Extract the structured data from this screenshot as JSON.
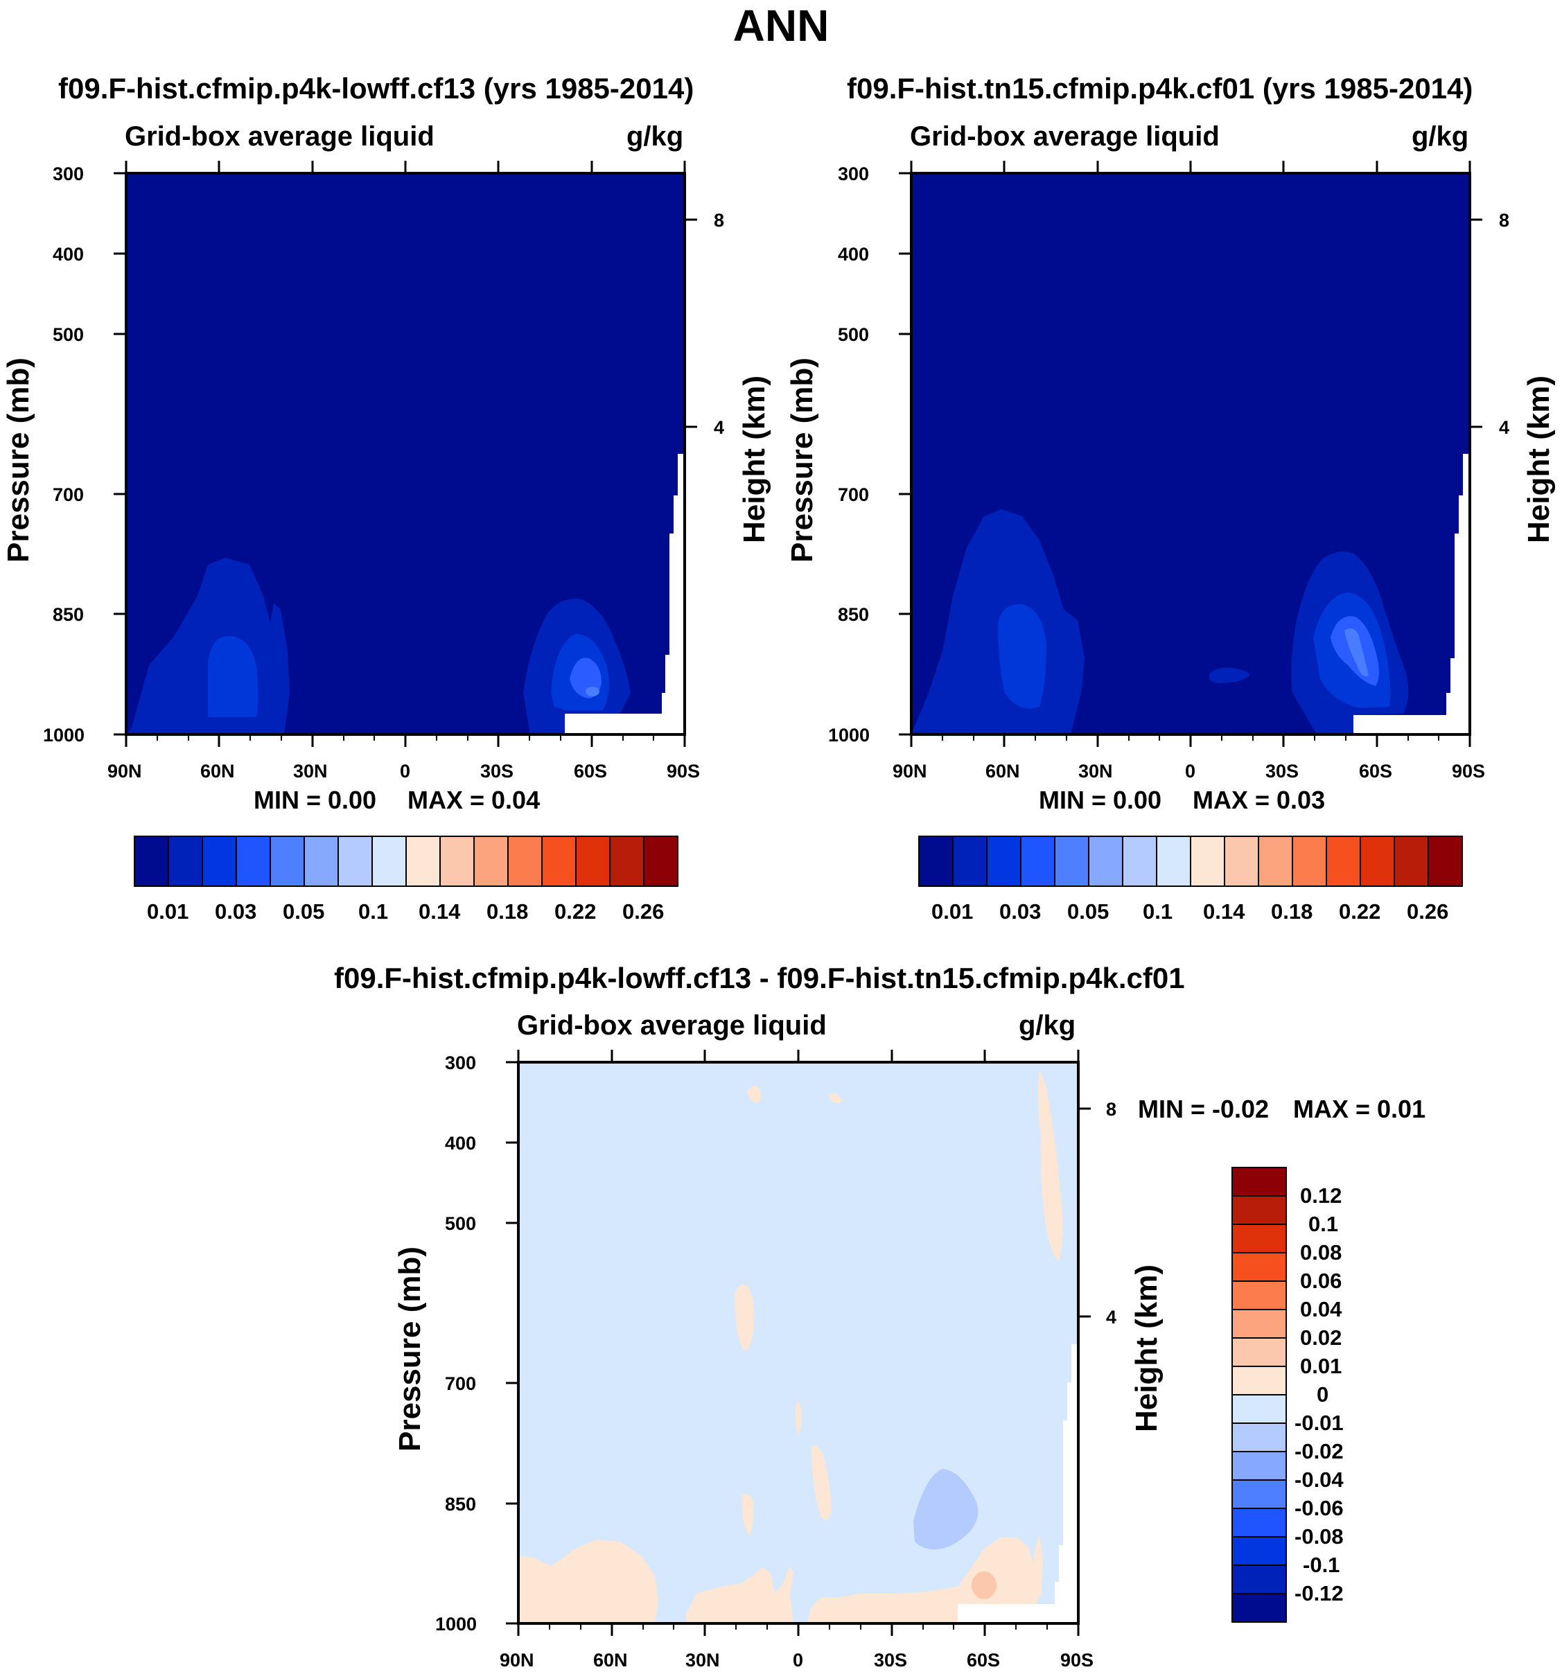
{
  "title": "ANN",
  "colors": {
    "background_dark": "#000c8f",
    "diff_background": "#d6e8fd",
    "positive_light": "#fde7d4"
  },
  "chart_data": [
    {
      "type": "heatmap",
      "title": "f09.F-hist.cfmip.p4k-lowff.cf13 (yrs 1985-2014)",
      "variable": "Grid-box average liquid",
      "units": "g/kg",
      "xlabel": "",
      "ylabel": "Pressure (mb)",
      "ylabel_right": "Height (km)",
      "x_ticks": [
        "90N",
        "60N",
        "30N",
        "0",
        "30S",
        "60S",
        "90S"
      ],
      "y_ticks": [
        "300",
        "400",
        "500",
        "700",
        "850",
        "1000"
      ],
      "y_right_ticks": [
        "8",
        "4"
      ],
      "min_text": "MIN =   0.00",
      "max_text": "MAX =   0.04",
      "colorbar_labels": [
        "0.01",
        "0.03",
        "0.05",
        "0.1",
        "0.14",
        "0.18",
        "0.22",
        "0.26"
      ],
      "features": [
        {
          "lat": 55,
          "p": 900,
          "value": 0.02
        },
        {
          "lat": -62,
          "p": 910,
          "value": 0.03
        }
      ]
    },
    {
      "type": "heatmap",
      "title": "f09.F-hist.tn15.cfmip.p4k.cf01 (yrs 1985-2014)",
      "variable": "Grid-box average liquid",
      "units": "g/kg",
      "xlabel": "",
      "ylabel": "Pressure (mb)",
      "ylabel_right": "Height (km)",
      "x_ticks": [
        "90N",
        "60N",
        "30N",
        "0",
        "30S",
        "60S",
        "90S"
      ],
      "y_ticks": [
        "300",
        "400",
        "500",
        "700",
        "850",
        "1000"
      ],
      "y_right_ticks": [
        "8",
        "4"
      ],
      "min_text": "MIN =   0.00",
      "max_text": "MAX =   0.03",
      "colorbar_labels": [
        "0.01",
        "0.03",
        "0.05",
        "0.1",
        "0.14",
        "0.18",
        "0.22",
        "0.26"
      ],
      "features": [
        {
          "lat": 58,
          "p": 880,
          "value": 0.02
        },
        {
          "lat": -55,
          "p": 890,
          "value": 0.03
        }
      ]
    },
    {
      "type": "heatmap",
      "title": "f09.F-hist.cfmip.p4k-lowff.cf13 - f09.F-hist.tn15.cfmip.p4k.cf01",
      "variable": "Grid-box average liquid",
      "units": "g/kg",
      "xlabel": "",
      "ylabel": "Pressure (mb)",
      "ylabel_right": "Height (km)",
      "x_ticks": [
        "90N",
        "60N",
        "30N",
        "0",
        "30S",
        "60S",
        "90S"
      ],
      "y_ticks": [
        "300",
        "400",
        "500",
        "700",
        "850",
        "1000"
      ],
      "y_right_ticks": [
        "8",
        "4"
      ],
      "min_text": "MIN =  -0.02",
      "max_text": "MAX =   0.01",
      "colorbar_labels": [
        "0.12",
        "0.1",
        "0.08",
        "0.06",
        "0.04",
        "0.02",
        "0.01",
        "0",
        "-0.01",
        "-0.02",
        "-0.04",
        "-0.06",
        "-0.08",
        "-0.1",
        "-0.12"
      ],
      "features": [
        {
          "lat": -45,
          "p": 860,
          "value": -0.01
        },
        {
          "lat": 60,
          "p": 950,
          "value": 0.005
        },
        {
          "lat": -60,
          "p": 950,
          "value": 0.01
        }
      ]
    }
  ]
}
